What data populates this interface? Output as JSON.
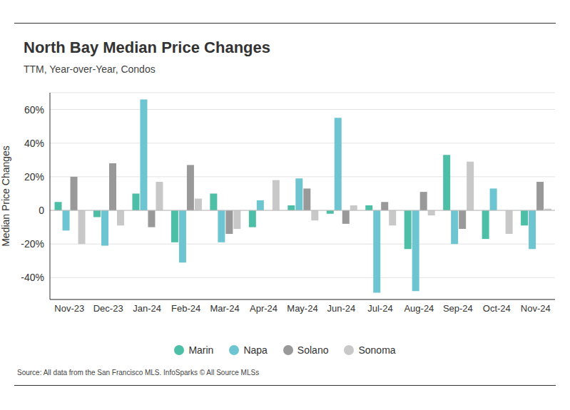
{
  "chart_data": {
    "type": "bar",
    "title": "North Bay Median Price Changes",
    "subtitle": "TTM, Year-over-Year, Condos",
    "y_label": "Median Price Changes",
    "source": "Source:  All data from the San Francisco MLS. InfoSparks © All Source MLSs",
    "categories": [
      "Nov-23",
      "Dec-23",
      "Jan-24",
      "Feb-24",
      "Mar-24",
      "Apr-24",
      "May-24",
      "Jun-24",
      "Jul-24",
      "Aug-24",
      "Sep-24",
      "Oct-24",
      "Nov-24"
    ],
    "series": [
      {
        "name": "Marin",
        "color": "#4dbfa6",
        "values": [
          5,
          -4,
          10,
          -19,
          10,
          -10,
          3,
          -2,
          3,
          -23,
          33,
          -17,
          -9
        ]
      },
      {
        "name": "Napa",
        "color": "#6cc5d0",
        "values": [
          -12,
          -21,
          66,
          -31,
          -19,
          6,
          19,
          55,
          -49,
          -48,
          -20,
          13,
          -23
        ]
      },
      {
        "name": "Solano",
        "color": "#999999",
        "values": [
          20,
          28,
          -10,
          27,
          -14,
          0,
          13,
          -8,
          5,
          11,
          -11,
          0,
          17
        ]
      },
      {
        "name": "Sonoma",
        "color": "#c8c8c8",
        "values": [
          -20,
          -9,
          17,
          7,
          -11,
          18,
          -6,
          3,
          -9,
          -3,
          29,
          -14,
          1
        ]
      }
    ],
    "ylim": [
      -53,
      70
    ],
    "yticks": [
      {
        "value": -40,
        "label": "-40%"
      },
      {
        "value": -20,
        "label": "-20%"
      },
      0,
      {
        "value": 20,
        "label": "20%"
      },
      {
        "value": 40,
        "label": "40%"
      },
      {
        "value": 60,
        "label": "60%"
      }
    ],
    "grid": true,
    "legend": "bottom"
  }
}
